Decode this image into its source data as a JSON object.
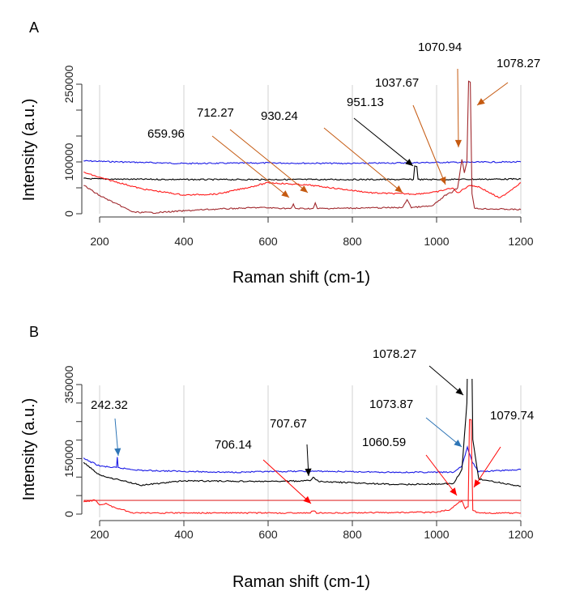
{
  "chart_data": [
    {
      "type": "line",
      "panel_label": "A",
      "xlabel": "Raman shift (cm-1)",
      "ylabel": "Intensity (a.u.)",
      "xlim": [
        160,
        1200
      ],
      "ylim": [
        0,
        260000
      ],
      "x_ticks": [
        200,
        400,
        600,
        800,
        1000,
        1200
      ],
      "y_ticks": [
        0,
        50000,
        100000,
        150000,
        200000,
        250000
      ],
      "y_tick_labels_shown": [
        "0",
        "100000",
        "250000"
      ],
      "grid": "vertical",
      "series": [
        {
          "color": "#1a1ae6",
          "points": [
            [
              162,
              102000
            ],
            [
              250,
              100000
            ],
            [
              400,
              97000
            ],
            [
              600,
              98000
            ],
            [
              800,
              97000
            ],
            [
              1000,
              99000
            ],
            [
              1200,
              100000
            ]
          ]
        },
        {
          "color": "#000000",
          "points": [
            [
              162,
              68000
            ],
            [
              200,
              67000
            ],
            [
              400,
              66000
            ],
            [
              945,
              66000
            ],
            [
              948,
              92000
            ],
            [
              953,
              92000
            ],
            [
              956,
              66000
            ],
            [
              1200,
              67000
            ]
          ]
        },
        {
          "color": "#ff1a1a",
          "points": [
            [
              162,
              80000
            ],
            [
              200,
              70000
            ],
            [
              300,
              48000
            ],
            [
              400,
              36000
            ],
            [
              480,
              38000
            ],
            [
              560,
              52000
            ],
            [
              600,
              60000
            ],
            [
              700,
              55000
            ],
            [
              850,
              40000
            ],
            [
              950,
              38000
            ],
            [
              1000,
              42000
            ],
            [
              1037,
              50000
            ],
            [
              1050,
              40000
            ],
            [
              1078,
              55000
            ],
            [
              1100,
              52000
            ],
            [
              1150,
              30000
            ],
            [
              1200,
              60000
            ]
          ]
        },
        {
          "color": "#a0282d",
          "points": [
            [
              162,
              55000
            ],
            [
              200,
              35000
            ],
            [
              280,
              3000
            ],
            [
              330,
              2000
            ],
            [
              450,
              8000
            ],
            [
              580,
              12000
            ],
            [
              655,
              10000
            ],
            [
              660,
              18000
            ],
            [
              665,
              10000
            ],
            [
              707,
              10000
            ],
            [
              712,
              20000
            ],
            [
              717,
              10000
            ],
            [
              920,
              12000
            ],
            [
              930,
              28000
            ],
            [
              940,
              12000
            ],
            [
              990,
              15000
            ],
            [
              1020,
              35000
            ],
            [
              1037,
              42000
            ],
            [
              1050,
              50000
            ],
            [
              1060,
              105000
            ],
            [
              1066,
              80000
            ],
            [
              1072,
              100000
            ],
            [
              1076,
              255000
            ],
            [
              1080,
              255000
            ],
            [
              1084,
              40000
            ],
            [
              1090,
              10000
            ],
            [
              1200,
              8000
            ]
          ]
        }
      ],
      "annotations": [
        {
          "text": "659.96",
          "x": 659.96,
          "color": "#c55a11"
        },
        {
          "text": "712.27",
          "x": 712.27,
          "color": "#c55a11"
        },
        {
          "text": "930.24",
          "x": 930.24,
          "color": "#c55a11"
        },
        {
          "text": "951.13",
          "x": 951.13,
          "color": "#000000"
        },
        {
          "text": "1037.67",
          "x": 1037.67,
          "color": "#c55a11"
        },
        {
          "text": "1070.94",
          "x": 1070.94,
          "color": "#c55a11"
        },
        {
          "text": "1078.27",
          "x": 1078.27,
          "color": "#c55a11"
        }
      ]
    },
    {
      "type": "line",
      "panel_label": "B",
      "xlabel": "Raman shift (cm-1)",
      "ylabel": "Intensity (a.u.)",
      "xlim": [
        160,
        1200
      ],
      "ylim": [
        0,
        370000
      ],
      "x_ticks": [
        200,
        400,
        600,
        800,
        1000,
        1200
      ],
      "y_ticks": [
        0,
        50000,
        100000,
        150000,
        200000,
        250000,
        300000,
        350000
      ],
      "y_tick_labels_shown": [
        "0",
        "150000",
        "350000"
      ],
      "grid": "vertical",
      "series": [
        {
          "color": "#1a1ae6",
          "points": [
            [
              162,
              150000
            ],
            [
              200,
              130000
            ],
            [
              240,
              125000
            ],
            [
              242,
              153000
            ],
            [
              244,
              125000
            ],
            [
              300,
              118000
            ],
            [
              500,
              113000
            ],
            [
              700,
              116000
            ],
            [
              900,
              113000
            ],
            [
              1040,
              113000
            ],
            [
              1060,
              130000
            ],
            [
              1073,
              180000
            ],
            [
              1085,
              140000
            ],
            [
              1100,
              115000
            ],
            [
              1200,
              120000
            ]
          ]
        },
        {
          "color": "#000000",
          "points": [
            [
              162,
              140000
            ],
            [
              200,
              105000
            ],
            [
              300,
              78000
            ],
            [
              400,
              90000
            ],
            [
              600,
              88000
            ],
            [
              700,
              90000
            ],
            [
              707,
              100000
            ],
            [
              720,
              88000
            ],
            [
              900,
              80000
            ],
            [
              1040,
              82000
            ],
            [
              1060,
              120000
            ],
            [
              1072,
              300000
            ],
            [
              1076,
              600000
            ],
            [
              1082,
              600000
            ],
            [
              1086,
              200000
            ],
            [
              1100,
              95000
            ],
            [
              1200,
              75000
            ]
          ]
        },
        {
          "color": "#e03030",
          "points": [
            [
              162,
              37000
            ],
            [
              1200,
              37000
            ]
          ]
        },
        {
          "color": "#ff1a1a",
          "points": [
            [
              162,
              33000
            ],
            [
              190,
              38000
            ],
            [
              200,
              25000
            ],
            [
              215,
              28000
            ],
            [
              230,
              20000
            ],
            [
              280,
              3000
            ],
            [
              700,
              3000
            ],
            [
              707,
              10000
            ],
            [
              715,
              3000
            ],
            [
              1000,
              5000
            ],
            [
              1030,
              12000
            ],
            [
              1060,
              37000
            ],
            [
              1068,
              15000
            ],
            [
              1075,
              20000
            ],
            [
              1078,
              255000
            ],
            [
              1082,
              255000
            ],
            [
              1086,
              10000
            ],
            [
              1100,
              3000
            ],
            [
              1200,
              3000
            ]
          ]
        }
      ],
      "annotations": [
        {
          "text": "242.32",
          "x": 242.32,
          "color": "#2e75b6"
        },
        {
          "text": "706.14",
          "x": 706.14,
          "color": "#ff0000"
        },
        {
          "text": "707.67",
          "x": 707.67,
          "color": "#000000"
        },
        {
          "text": "1078.27",
          "x": 1078.27,
          "color": "#000000"
        },
        {
          "text": "1073.87",
          "x": 1073.87,
          "color": "#2e75b6"
        },
        {
          "text": "1060.59",
          "x": 1060.59,
          "color": "#ff0000"
        },
        {
          "text": "1079.74",
          "x": 1079.74,
          "color": "#ff0000"
        }
      ]
    }
  ]
}
